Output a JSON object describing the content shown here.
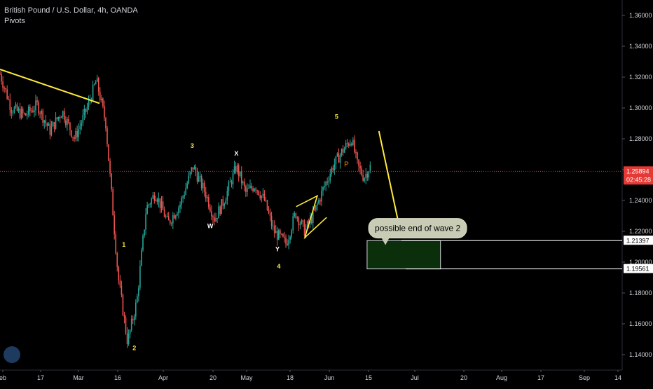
{
  "header": {
    "title": "British Pound / U.S. Dollar, 4h, OANDA",
    "indicator": "Pivots"
  },
  "colors": {
    "background": "#000000",
    "up": "#26a69a",
    "down": "#ef5350",
    "annotation": "#ffeb3b",
    "price_line": "#e53935",
    "target_fill": "#0b2e0b",
    "axis_text": "#d1d4dc"
  },
  "chart_data": {
    "type": "candlestick",
    "y_range": [
      1.13,
      1.37
    ],
    "y_ticks": [
      "1.36000",
      "1.34000",
      "1.32000",
      "1.30000",
      "1.28000",
      "1.26000",
      "1.24000",
      "1.22000",
      "1.20000",
      "1.18000",
      "1.16000",
      "1.14000"
    ],
    "x_ticks": [
      "eb",
      "17",
      "Mar",
      "16",
      "Apr",
      "20",
      "May",
      "18",
      "Jun",
      "15",
      "Jul",
      "20",
      "Aug",
      "17",
      "Sep",
      "14"
    ],
    "current_price": {
      "value": 1.25894,
      "label": "1.25894",
      "countdown": "02:45:28"
    },
    "levels": [
      {
        "value": 1.21397,
        "label": "1.21397"
      },
      {
        "value": 1.19561,
        "label": "1.19561"
      }
    ],
    "target_zone": {
      "from": 1.19561,
      "to": 1.21397
    },
    "price_path": [
      [
        0,
        1.322
      ],
      [
        0.018,
        1.3
      ],
      [
        0.04,
        1.295
      ],
      [
        0.06,
        1.302
      ],
      [
        0.08,
        1.285
      ],
      [
        0.1,
        1.298
      ],
      [
        0.12,
        1.28
      ],
      [
        0.14,
        1.3
      ],
      [
        0.155,
        1.318
      ],
      [
        0.17,
        1.29
      ],
      [
        0.18,
        1.24
      ],
      [
        0.19,
        1.19
      ],
      [
        0.205,
        1.148
      ],
      [
        0.22,
        1.175
      ],
      [
        0.235,
        1.235
      ],
      [
        0.25,
        1.245
      ],
      [
        0.27,
        1.225
      ],
      [
        0.29,
        1.238
      ],
      [
        0.31,
        1.262
      ],
      [
        0.33,
        1.245
      ],
      [
        0.345,
        1.228
      ],
      [
        0.36,
        1.24
      ],
      [
        0.38,
        1.262
      ],
      [
        0.395,
        1.245
      ],
      [
        0.41,
        1.25
      ],
      [
        0.425,
        1.24
      ],
      [
        0.44,
        1.22
      ],
      [
        0.46,
        1.212
      ],
      [
        0.475,
        1.232
      ],
      [
        0.49,
        1.22
      ],
      [
        0.505,
        1.232
      ],
      [
        0.52,
        1.248
      ],
      [
        0.535,
        1.262
      ],
      [
        0.55,
        1.272
      ],
      [
        0.565,
        1.28
      ],
      [
        0.575,
        1.262
      ],
      [
        0.585,
        1.255
      ],
      [
        0.595,
        1.262
      ]
    ],
    "wave_labels": [
      {
        "text": "1",
        "x": 0.199,
        "y": 1.21
      },
      {
        "text": "2",
        "x": 0.216,
        "y": 1.143
      },
      {
        "text": "3",
        "x": 0.309,
        "y": 1.274
      },
      {
        "text": "W",
        "x": 0.338,
        "y": 1.222
      },
      {
        "text": "X",
        "x": 0.38,
        "y": 1.269
      },
      {
        "text": "Y",
        "x": 0.446,
        "y": 1.207
      },
      {
        "text": "4",
        "x": 0.448,
        "y": 1.196
      },
      {
        "text": "5",
        "x": 0.541,
        "y": 1.293
      }
    ],
    "pivot_label": {
      "text": "P",
      "x": 0.553,
      "y": 1.262
    },
    "trendline": {
      "from": [
        0,
        1.325
      ],
      "to": [
        0.16,
        1.303
      ]
    },
    "callout": {
      "text": "possible end of wave 2",
      "anchor_x": 0.66,
      "y": 1.222
    }
  }
}
